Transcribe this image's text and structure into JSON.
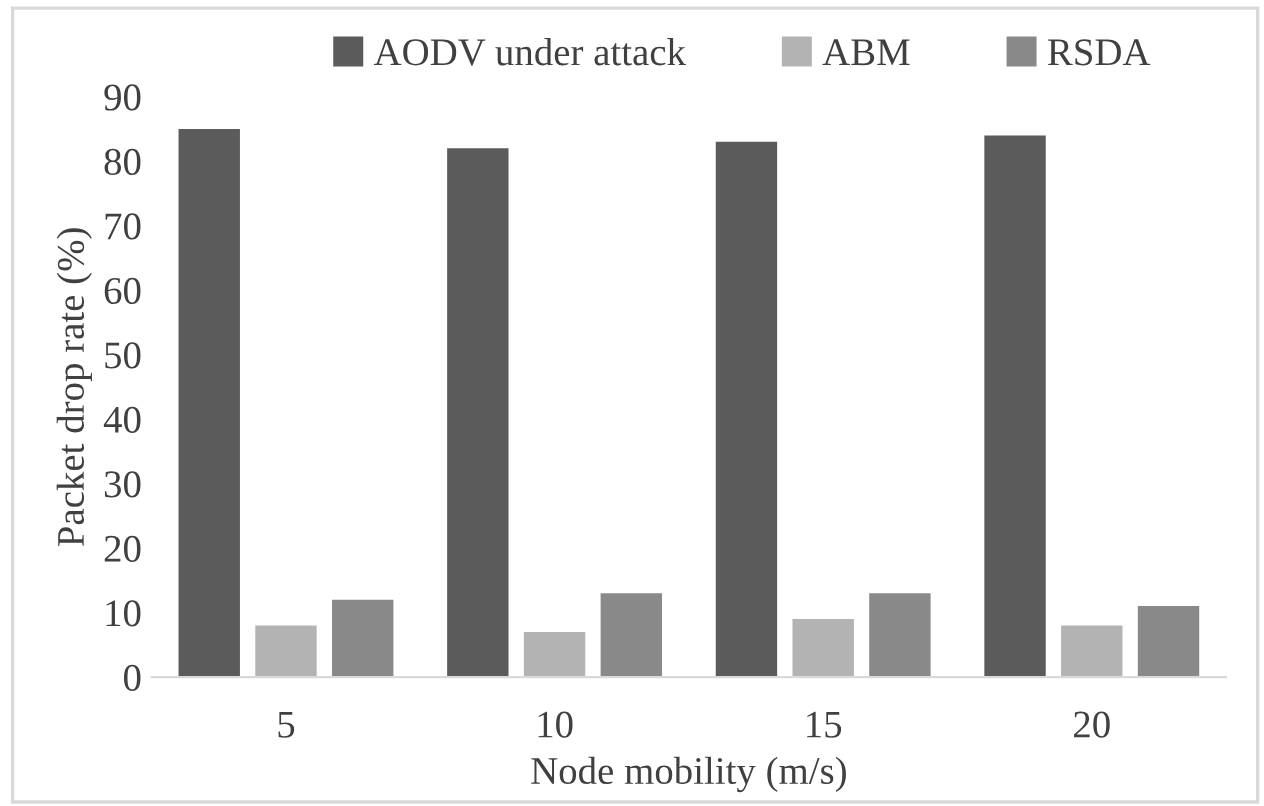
{
  "chart_data": {
    "type": "bar",
    "xlabel": "Node mobility (m/s)",
    "ylabel": "Packet drop rate (%)",
    "categories": [
      "5",
      "10",
      "15",
      "20"
    ],
    "series": [
      {
        "name": "AODV under attack",
        "color": "#5b5b5b",
        "values": [
          85,
          82,
          83,
          84
        ]
      },
      {
        "name": "ABM",
        "color": "#b3b3b3",
        "values": [
          8,
          7,
          9,
          8
        ]
      },
      {
        "name": "RSDA",
        "color": "#898989",
        "values": [
          12,
          13,
          13,
          11
        ]
      }
    ],
    "ylim": [
      0,
      90
    ],
    "yticks": [
      0,
      10,
      20,
      30,
      40,
      50,
      60,
      70,
      80,
      90
    ],
    "grid": false,
    "legend": "top"
  }
}
